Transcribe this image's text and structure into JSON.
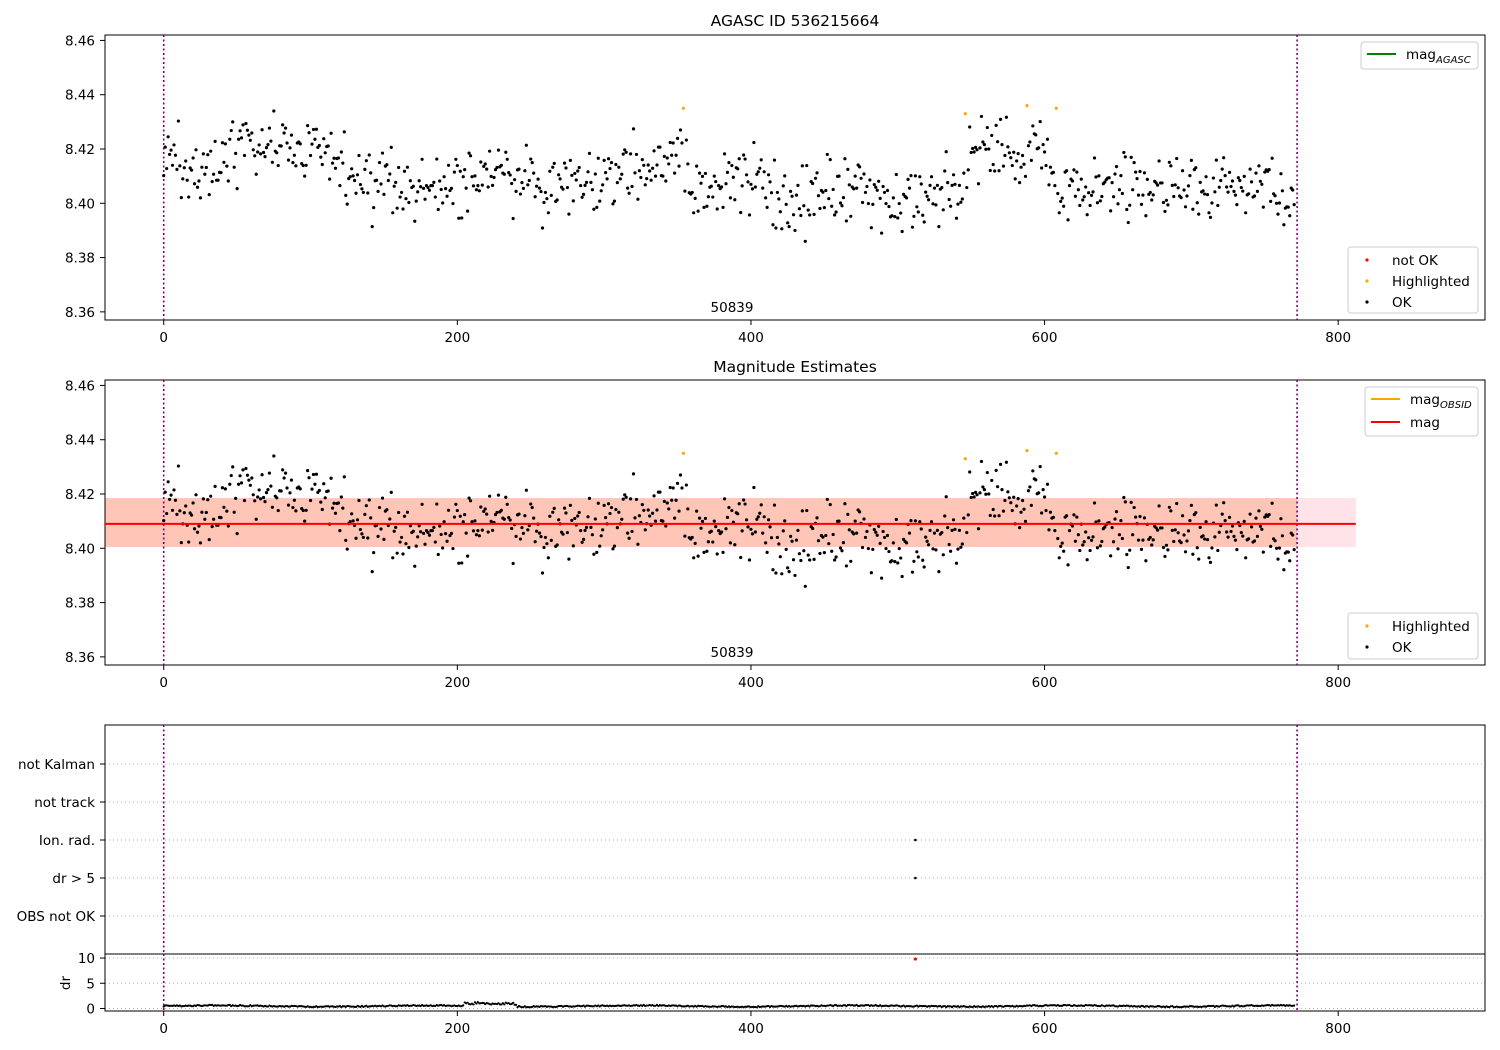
{
  "chart_data": [
    {
      "panel": "top",
      "type": "scatter",
      "title": "AGASC ID 536215664",
      "xlim": [
        -40,
        900
      ],
      "ylim": [
        8.357,
        8.462
      ],
      "xticks": [
        "0",
        "200",
        "400",
        "600",
        "800"
      ],
      "yticks": [
        "8.36",
        "8.38",
        "8.40",
        "8.42",
        "8.44",
        "8.46"
      ],
      "obsid_label": "50839",
      "obsid_label_x": 385,
      "obs_boundaries": [
        0,
        772
      ],
      "lines": [
        {
          "name": "mag_AGASC",
          "color": "#008000",
          "y": null
        }
      ],
      "series": [
        {
          "name": "not OK",
          "color": "#ff0000",
          "points": []
        },
        {
          "name": "Highlighted",
          "color": "#ffa500",
          "points": [
            [
              354,
              8.435
            ],
            [
              546,
              8.433
            ],
            [
              588,
              8.436
            ],
            [
              608,
              8.435
            ]
          ]
        },
        {
          "name": "OK",
          "color": "#000000",
          "points": "generated"
        }
      ],
      "legend_lines": "top-right",
      "legend_points": "bottom-right",
      "grid": false
    },
    {
      "panel": "middle",
      "type": "scatter",
      "title": "Magnitude Estimates",
      "xlim": [
        -40,
        900
      ],
      "ylim": [
        8.357,
        8.462
      ],
      "xticks": [
        "0",
        "200",
        "400",
        "600",
        "800"
      ],
      "yticks": [
        "8.36",
        "8.38",
        "8.40",
        "8.42",
        "8.44",
        "8.46"
      ],
      "obsid_label": "50839",
      "obsid_label_x": 385,
      "obs_boundaries": [
        0,
        772
      ],
      "mag_line": {
        "y": 8.409,
        "x_range": [
          -40,
          812
        ],
        "color": "#ff0000"
      },
      "mag_band": {
        "y_range": [
          8.4005,
          8.4185
        ],
        "color": "#ffc0cb"
      },
      "obsid_band": {
        "y_range": [
          8.4005,
          8.4185
        ],
        "x_range": [
          -40,
          772
        ],
        "color": "#ffa07a"
      },
      "series": [
        {
          "name": "Highlighted",
          "color": "#ffa500",
          "points": [
            [
              354,
              8.435
            ],
            [
              546,
              8.433
            ],
            [
              588,
              8.436
            ],
            [
              608,
              8.435
            ]
          ]
        },
        {
          "name": "OK",
          "color": "#000000",
          "points": "generated"
        }
      ],
      "legend_lines": "top-right",
      "legend_points": "bottom-right",
      "grid": false
    },
    {
      "panel": "flags",
      "type": "scatter",
      "categories": [
        "not Kalman",
        "not track",
        "Ion. rad.",
        "dr > 5",
        "OBS not OK"
      ],
      "xlim": [
        -40,
        900
      ],
      "points": [
        {
          "category": "Ion. rad.",
          "x": 512
        },
        {
          "category": "dr > 5",
          "x": 512
        }
      ],
      "obs_boundaries": [
        0,
        772
      ],
      "grid": "dotted-y"
    },
    {
      "panel": "dr",
      "type": "scatter",
      "ylabel": "dr",
      "xlim": [
        -40,
        900
      ],
      "ylim": [
        -0.5,
        10.8
      ],
      "xticks": [
        "0",
        "200",
        "400",
        "600",
        "800"
      ],
      "yticks": [
        "0",
        "5",
        "10"
      ],
      "outlier": {
        "x": 512,
        "y": 9.8,
        "color": "#ff0000"
      },
      "obs_boundaries": [
        0,
        772
      ],
      "grid": "dotted-y"
    }
  ],
  "legend": {
    "mag_agasc": {
      "main": "mag",
      "sub": "AGASC"
    },
    "mag_obsid": {
      "main": "mag",
      "sub": "OBSID"
    },
    "mag": "mag",
    "not_ok": "not OK",
    "highlighted": "Highlighted",
    "ok": "OK"
  },
  "colors": {
    "ok": "#000000",
    "highlighted": "#ffa500",
    "not_ok": "#ff0000",
    "agasc_line": "#008000",
    "obsid_line": "#ffa500",
    "mag_line": "#ff0000",
    "boundary": "#800080",
    "mag_band": "#ffc0cb",
    "obsid_band": "#ffa07a"
  }
}
